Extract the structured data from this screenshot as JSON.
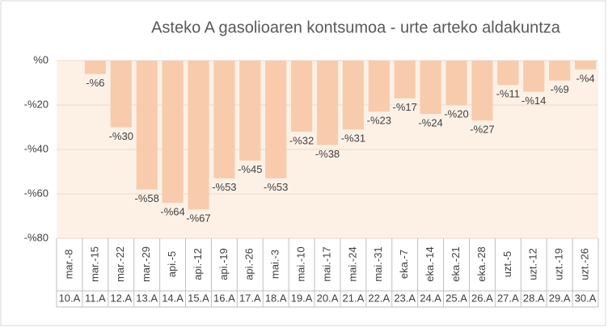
{
  "chart_data": {
    "type": "bar",
    "title": "Asteko A gasolioaren kontsumoa - urte arteko aldakuntza",
    "categories": [
      "mar.-8",
      "mar.-15",
      "mar.-22",
      "mar.-29",
      "api.-5",
      "api.-12",
      "api.-19",
      "api.-26",
      "mai.-3",
      "mai.-10",
      "mai.-17",
      "mai.-24",
      "mai.-31",
      "eka.-7",
      "eka.-14",
      "eka.-21",
      "eka.-28",
      "uzt.-5",
      "uzt.-12",
      "uzt.-19",
      "uzt.-26"
    ],
    "weeks": [
      "10.A",
      "11.A",
      "12.A",
      "13.A",
      "14.A",
      "15.A",
      "16.A",
      "17.A",
      "18.A",
      "19.A",
      "20.A",
      "21.A",
      "22.A",
      "23.A",
      "24.A",
      "25.A",
      "26.A",
      "27.A",
      "28.A",
      "29.A",
      "30.A"
    ],
    "values": [
      null,
      -6,
      -30,
      -58,
      -64,
      -67,
      -53,
      -45,
      -53,
      -32,
      -38,
      -31,
      -23,
      -17,
      -24,
      -20,
      -27,
      -11,
      -14,
      -9,
      -4
    ],
    "value_labels": [
      null,
      "-%6",
      "-%30",
      "-%58",
      "-%64",
      "-%67",
      "-%53",
      "-%45",
      "-%53",
      "-%32",
      "-%38",
      "-%31",
      "-%23",
      "-%17",
      "-%24",
      "-%20",
      "-%27",
      "-%11",
      "-%14",
      "-%9",
      "-%4"
    ],
    "color": "#f8cbad",
    "ylim": [
      -80,
      0
    ],
    "yticks": [
      {
        "value": 0,
        "label": "%0"
      },
      {
        "value": -20,
        "label": "-%20"
      },
      {
        "value": -40,
        "label": "-%40"
      },
      {
        "value": -60,
        "label": "-%60"
      },
      {
        "value": -80,
        "label": "-%80"
      }
    ],
    "grid": true
  }
}
